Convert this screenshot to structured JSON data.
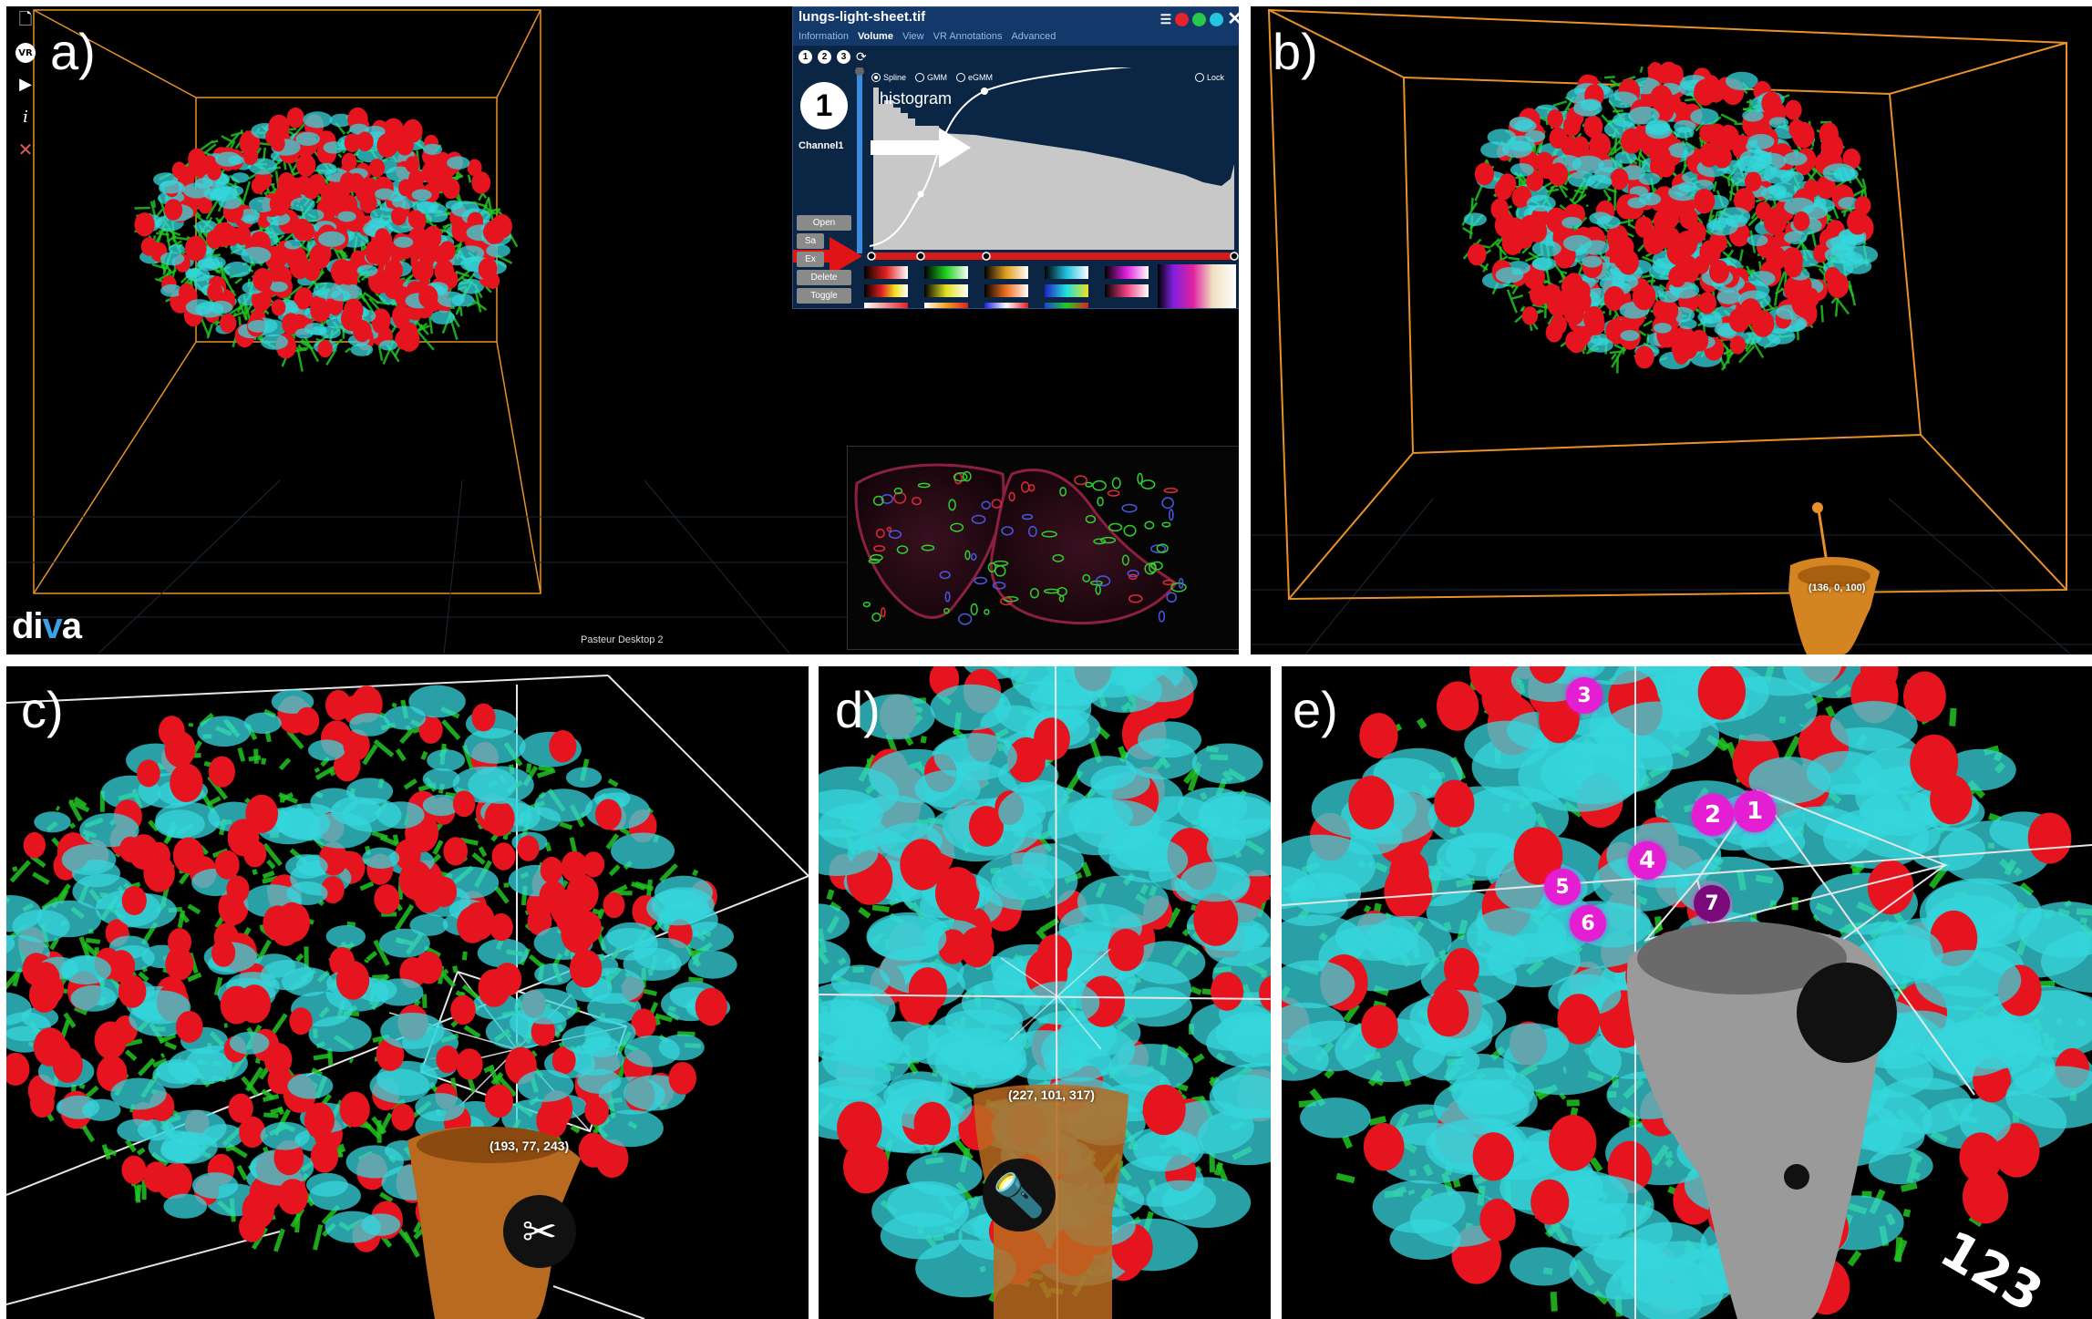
{
  "panels": {
    "a": {
      "label": "a)",
      "toolbar": [
        {
          "icon": "file-icon",
          "glyph": "🗋"
        },
        {
          "icon": "vr-icon",
          "glyph": "VR"
        },
        {
          "icon": "camera-icon",
          "glyph": "▶"
        },
        {
          "icon": "info-icon",
          "glyph": "i"
        },
        {
          "icon": "close-icon",
          "glyph": "✕"
        }
      ],
      "brand": {
        "pre": "di",
        "mid": "v",
        "post": "a"
      },
      "footer": "Pasteur Desktop 2",
      "window": {
        "title": "lungs-light-sheet.tif",
        "tabs": [
          "Information",
          "Volume",
          "View",
          "VR Annotations",
          "Advanced"
        ],
        "active_tab": "Volume",
        "channel_numbers": [
          "1",
          "2",
          "3"
        ],
        "channel_big": "1",
        "channel_name": "Channel1",
        "modes": [
          "Spline",
          "GMM",
          "eGMM"
        ],
        "selected_mode": "Spline",
        "lock_label": "Lock",
        "histogram_label": "histogram",
        "buttons": [
          "Open",
          "Sa",
          "Ex",
          "Delete",
          "Toggle"
        ],
        "title_dot_colors": [
          "#e6232b",
          "#28c84c",
          "#22c6e0"
        ]
      }
    },
    "b": {
      "label": "b)",
      "coord": "(136, 0, 100)"
    },
    "c": {
      "label": "c)",
      "coord": "(193, 77, 243)",
      "tool_icon": "scissors-icon",
      "tool_glyph": "✂"
    },
    "d": {
      "label": "d)",
      "coord": "(227, 101, 317)",
      "tool_icon": "flashlight-icon",
      "tool_glyph": "🔦"
    },
    "e": {
      "label": "e)",
      "markers": [
        "3",
        "2",
        "1",
        "4",
        "5",
        "6",
        "7"
      ],
      "controller_text": "123"
    }
  },
  "colors": {
    "red": "#e6141e",
    "cyan": "#35d6dc",
    "green": "#22c422",
    "box": "#e8912a",
    "marker": "#e31ed3"
  }
}
